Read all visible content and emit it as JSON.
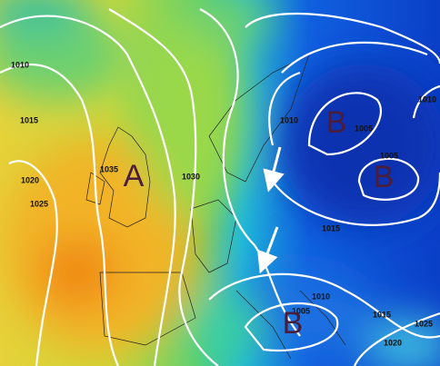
{
  "map": {
    "isobar_labels": [
      "1010",
      "1015",
      "1020",
      "1025",
      "1035",
      "1030",
      "1010",
      "1005",
      "1010",
      "1005",
      "1015",
      "1010",
      "1005",
      "1015",
      "1025",
      "1020"
    ],
    "centers": [
      "A",
      "B",
      "B",
      "B"
    ]
  }
}
